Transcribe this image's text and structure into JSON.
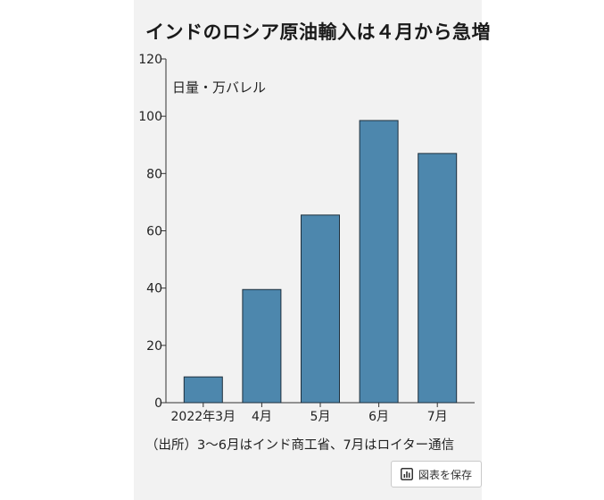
{
  "title": "インドのロシア原油輸入は４月から急増",
  "chart_data": {
    "type": "bar",
    "categories": [
      "2022年3月",
      "4月",
      "5月",
      "6月",
      "7月"
    ],
    "values": [
      9,
      39.5,
      65.5,
      98.5,
      87
    ],
    "ylim": [
      0,
      120
    ],
    "yticks": [
      0,
      20,
      40,
      60,
      80,
      100,
      120
    ],
    "unit_label": "日量・万バレル",
    "bar_color": "#4d87ad",
    "bar_edge_color": "#1e2f3c",
    "grid": false
  },
  "source_note": "（出所）3～6月はインド商工省、7月はロイター通信",
  "save_button": {
    "label": "図表を保存",
    "icon": "bar-chart-icon"
  },
  "colors": {
    "panel_background": "#f2f2f2",
    "page_background": "#ffffff"
  }
}
